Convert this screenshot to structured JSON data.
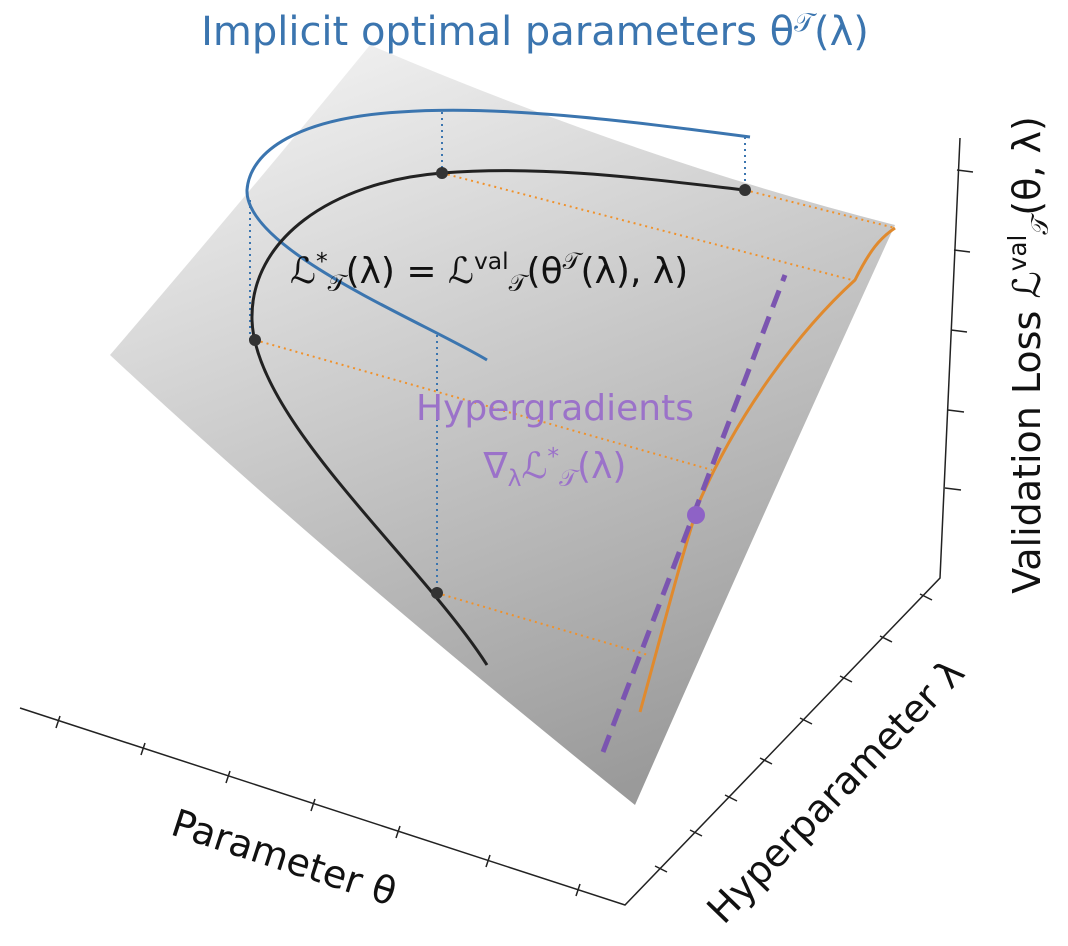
{
  "title": [
    "Implicit optimal parameters θ",
    "𝒯",
    "(λ)"
  ],
  "equation": [
    "ℒ",
    "*",
    "𝒯",
    "(λ) = ℒ",
    "val",
    "𝒯",
    "(θ",
    "𝒯",
    "(λ), λ)"
  ],
  "hypergradient_label": {
    "line1": "Hypergradients",
    "line2": [
      "∇",
      "λ",
      "ℒ",
      "*",
      "𝒯",
      "(λ)"
    ]
  },
  "axes": {
    "x": "Parameter θ",
    "y": "Hyperparameter λ",
    "z": [
      "Validation Loss ℒ",
      "val",
      "𝒯",
      "(θ, λ)"
    ]
  }
}
